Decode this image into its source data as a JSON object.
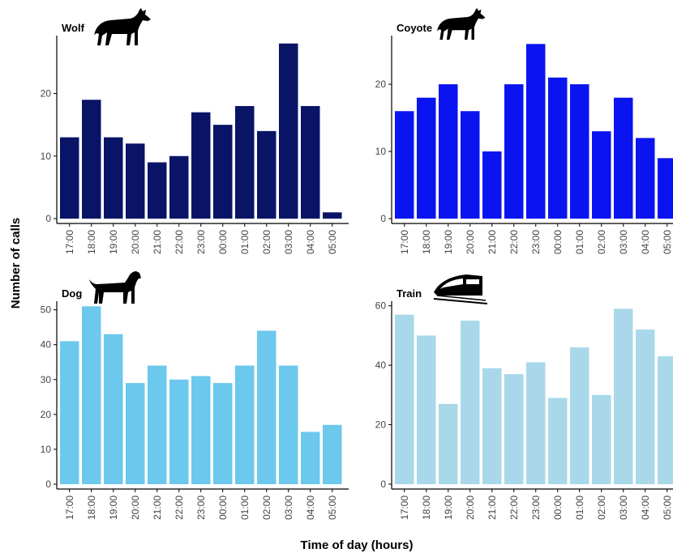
{
  "figure": {
    "ylabel": "Number of calls",
    "xlabel": "Time of day (hours)"
  },
  "chart_data": [
    {
      "type": "bar",
      "title": "Wolf",
      "icon": "wolf-icon",
      "color": "#0a1466",
      "categories": [
        "17:00",
        "18:00",
        "19:00",
        "20:00",
        "21:00",
        "22:00",
        "23:00",
        "00:00",
        "01:00",
        "02:00",
        "03:00",
        "04:00",
        "05:00"
      ],
      "values": [
        13,
        19,
        13,
        12,
        9,
        10,
        17,
        15,
        18,
        14,
        28,
        18,
        1
      ],
      "ylim": [
        0,
        29
      ],
      "yticks": [
        0,
        10,
        20
      ]
    },
    {
      "type": "bar",
      "title": "Coyote",
      "icon": "coyote-icon",
      "color": "#0a14f0",
      "categories": [
        "17:00",
        "18:00",
        "19:00",
        "20:00",
        "21:00",
        "22:00",
        "23:00",
        "00:00",
        "01:00",
        "02:00",
        "03:00",
        "04:00",
        "05:00"
      ],
      "values": [
        16,
        18,
        20,
        16,
        10,
        20,
        26,
        21,
        20,
        13,
        18,
        12,
        9
      ],
      "ylim": [
        0,
        27
      ],
      "yticks": [
        0,
        10,
        20
      ]
    },
    {
      "type": "bar",
      "title": "Dog",
      "icon": "dog-icon",
      "color": "#6cc8ec",
      "categories": [
        "17:00",
        "18:00",
        "19:00",
        "20:00",
        "21:00",
        "22:00",
        "23:00",
        "00:00",
        "01:00",
        "02:00",
        "03:00",
        "04:00",
        "05:00"
      ],
      "values": [
        41,
        51,
        43,
        29,
        34,
        30,
        31,
        29,
        34,
        44,
        34,
        15,
        17
      ],
      "ylim": [
        0,
        52
      ],
      "yticks": [
        0,
        10,
        20,
        30,
        40,
        50
      ]
    },
    {
      "type": "bar",
      "title": "Train",
      "icon": "train-icon",
      "color": "#a8d8ea",
      "categories": [
        "17:00",
        "18:00",
        "19:00",
        "20:00",
        "21:00",
        "22:00",
        "23:00",
        "00:00",
        "01:00",
        "02:00",
        "03:00",
        "04:00",
        "05:00"
      ],
      "values": [
        57,
        50,
        27,
        55,
        39,
        37,
        41,
        29,
        46,
        30,
        59,
        52,
        43
      ],
      "ylim": [
        0,
        61
      ],
      "yticks": [
        0,
        20,
        40,
        60
      ]
    }
  ]
}
